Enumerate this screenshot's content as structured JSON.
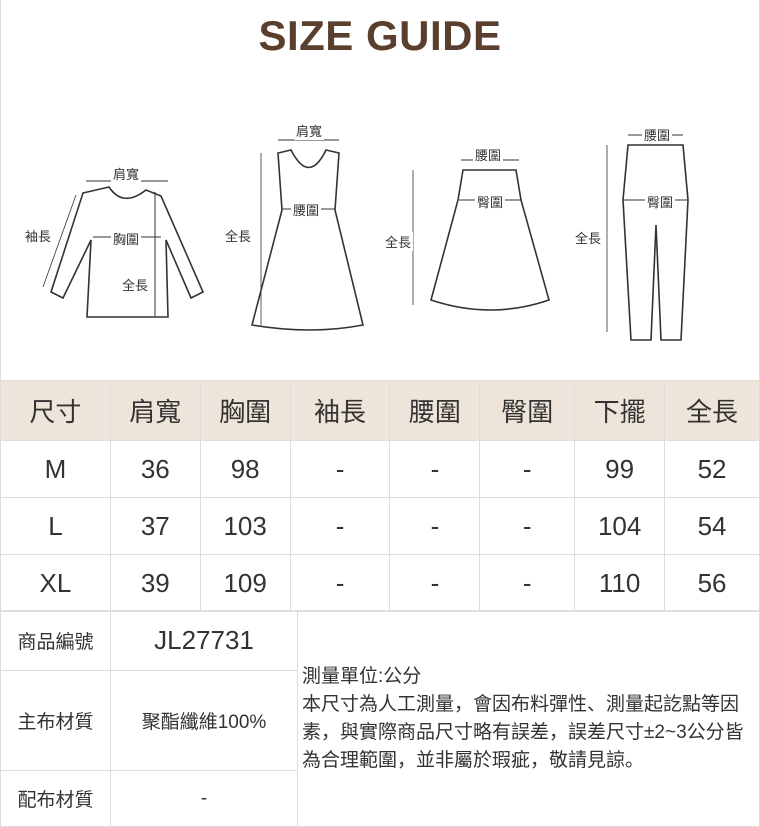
{
  "title": "SIZE GUIDE",
  "diagrams": {
    "top": {
      "shoulder": "肩寬",
      "sleeve": "袖長",
      "chest": "胸圍",
      "length": "全長"
    },
    "dress": {
      "shoulder": "肩寬",
      "waist": "腰圍",
      "length": "全長"
    },
    "skirt": {
      "waist": "腰圍",
      "hip": "臀圍",
      "length": "全長"
    },
    "pants": {
      "waist": "腰圍",
      "hip": "臀圍",
      "length": "全長"
    }
  },
  "size_table": {
    "headers": [
      "尺寸",
      "肩寬",
      "胸圍",
      "袖長",
      "腰圍",
      "臀圍",
      "下擺",
      "全長"
    ],
    "rows": [
      [
        "M",
        "36",
        "98",
        "-",
        "-",
        "-",
        "99",
        "52"
      ],
      [
        "L",
        "37",
        "103",
        "-",
        "-",
        "-",
        "104",
        "54"
      ],
      [
        "XL",
        "39",
        "109",
        "-",
        "-",
        "-",
        "110",
        "56"
      ]
    ]
  },
  "info": {
    "product_no_label": "商品編號",
    "product_no": "JL27731",
    "main_material_label": "主布材質",
    "main_material": "聚酯纖維100%",
    "sub_material_label": "配布材質",
    "sub_material": "-",
    "unit": "測量單位:公分",
    "note": "本尺寸為人工測量，會因布料彈性、測量起訖點等因素，與實際商品尺寸略有誤差，誤差尺寸±2~3公分皆為合理範圍，並非屬於瑕疵，敬請見諒。"
  },
  "colors": {
    "header_bg": "#efe4da",
    "title": "#5a3f2e"
  }
}
